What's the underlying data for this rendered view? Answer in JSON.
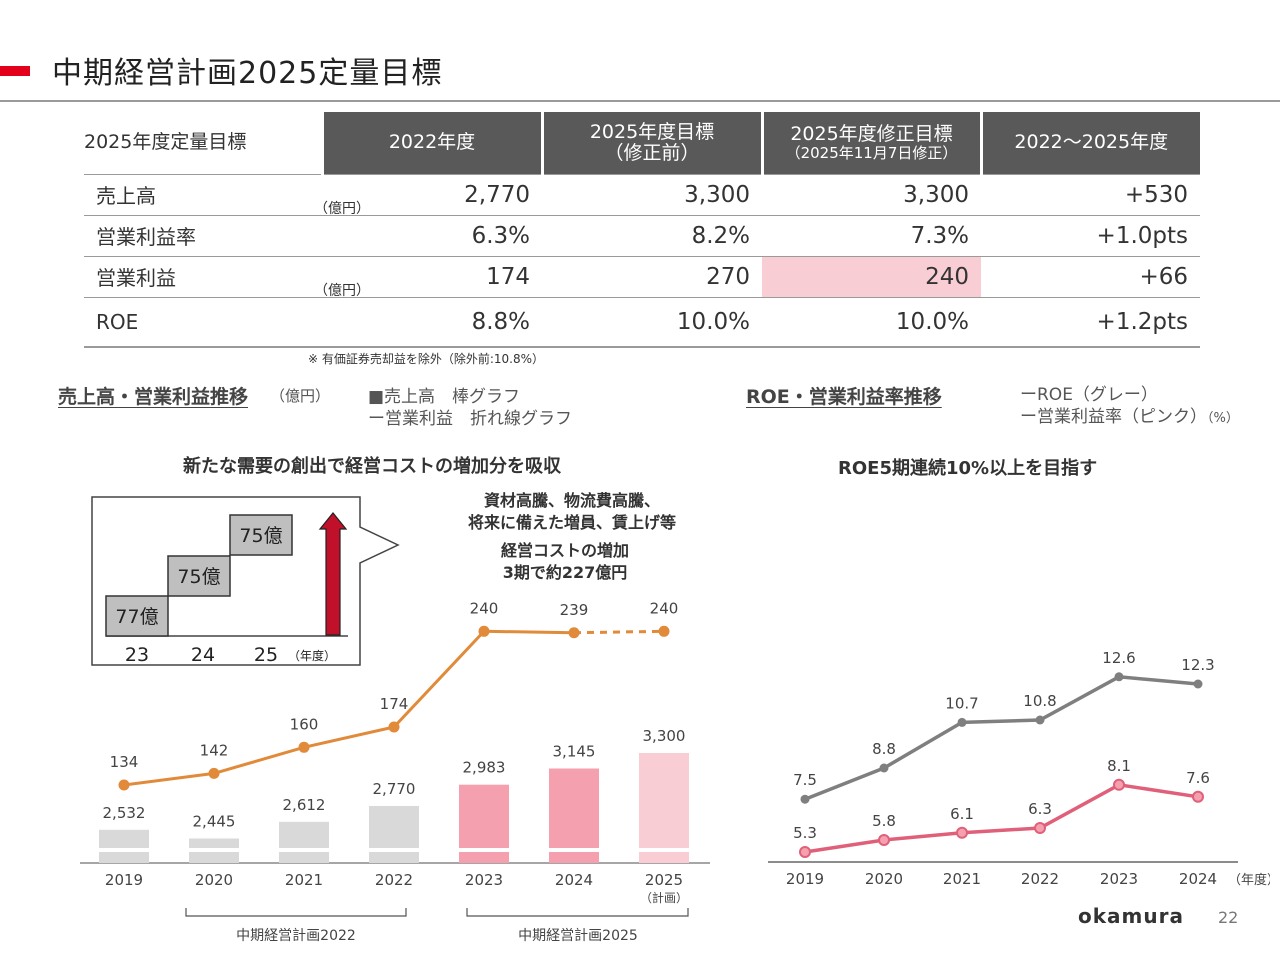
{
  "page": {
    "title": "中期経営計画2025定量目標",
    "page_number": "22",
    "logo_text": "okamura",
    "accent_color": "#e2001a"
  },
  "table": {
    "corner_label": "2025年度定量目標",
    "headers": [
      {
        "line1": "2022年度",
        "line2": ""
      },
      {
        "line1": "2025年度目標",
        "line2": "（修正前）"
      },
      {
        "line1": "2025年度修正目標",
        "line2": "（2025年11月7日修正）"
      },
      {
        "line1": "2022～2025年度",
        "line2": ""
      }
    ],
    "rows": [
      {
        "label": "売上高",
        "unit": "（億円）",
        "values": [
          "2,770",
          "3,300",
          "3,300",
          "+530"
        ]
      },
      {
        "label": "営業利益率",
        "unit": "",
        "values": [
          "6.3%",
          "8.2%",
          "7.3%",
          "+1.0pts"
        ]
      },
      {
        "label": "営業利益",
        "unit": "（億円）",
        "values": [
          "174",
          "270",
          "240",
          "+66"
        ]
      },
      {
        "label": "ROE",
        "unit": "",
        "values": [
          "8.8%",
          "10.0%",
          "10.0%",
          "+1.2pts"
        ]
      }
    ],
    "footnote": "※ 有価証券売却益を除外（除外前:10.8%）"
  },
  "left_section": {
    "title": "売上高・営業利益推移",
    "unit": "（億円）",
    "legend_bar": "■売上高　棒グラフ",
    "legend_line": "ー営業利益　折れ線グラフ",
    "headline": "新たな需要の創出で経営コストの増加分を吸収",
    "cost_note_line1": "資材高騰、物流費高騰、",
    "cost_note_line2": "将来に備えた増員、賃上げ等",
    "cost_note_line3": "経営コストの増加",
    "cost_note_line4": "3期で約227億円",
    "inset": {
      "steps": [
        "77億",
        "75億",
        "75億"
      ],
      "years": [
        "23",
        "24",
        "25"
      ],
      "year_unit": "（年度）"
    },
    "period_2022": "中期経営計画2022",
    "period_2025": "中期経営計画2025"
  },
  "right_section": {
    "title": "ROE・営業利益率推移",
    "legend_roe": "ーROE（グレー）",
    "legend_margin": "ー営業利益率（ピンク）",
    "legend_unit": "（%）",
    "headline": "ROE5期連続10%以上を目指す",
    "year_unit": "（年度）"
  },
  "chart_data": [
    {
      "type": "bar",
      "categories": [
        "2019",
        "2020",
        "2021",
        "2022",
        "2023",
        "2024",
        "2025"
      ],
      "category_sublabels": [
        "",
        "",
        "",
        "",
        "",
        "",
        "（計画）"
      ],
      "series": [
        {
          "name": "売上高",
          "values": [
            2532,
            2445,
            2612,
            2770,
            2983,
            3145,
            3300
          ],
          "labels": [
            "2,532",
            "2,445",
            "2,612",
            "2,770",
            "2,983",
            "3,145",
            "3,300"
          ]
        },
        {
          "name": "営業利益",
          "type": "line",
          "values": [
            134,
            142,
            160,
            174,
            240,
            239,
            240
          ],
          "labels": [
            "134",
            "142",
            "160",
            "174",
            "240",
            "239",
            "240"
          ],
          "dashed_from_index": 5
        }
      ],
      "colors": {
        "bar_past": "#d9d9d9",
        "bar_current": "#f4a0ae",
        "bar_plan": "#f9cdd4",
        "line": "#e08a3a"
      }
    },
    {
      "type": "line",
      "x": [
        "2019",
        "2020",
        "2021",
        "2022",
        "2023",
        "2024"
      ],
      "series": [
        {
          "name": "ROE",
          "values": [
            7.5,
            8.8,
            10.7,
            10.8,
            12.6,
            12.3
          ],
          "labels": [
            "7.5",
            "8.8",
            "10.7",
            "10.8",
            "12.6",
            "12.3"
          ],
          "color": "#7f7f7f"
        },
        {
          "name": "営業利益率",
          "values": [
            5.3,
            5.8,
            6.1,
            6.3,
            8.1,
            7.6
          ],
          "labels": [
            "5.3",
            "5.8",
            "6.1",
            "6.3",
            "8.1",
            "7.6"
          ],
          "color": "#e0607a"
        }
      ]
    }
  ]
}
